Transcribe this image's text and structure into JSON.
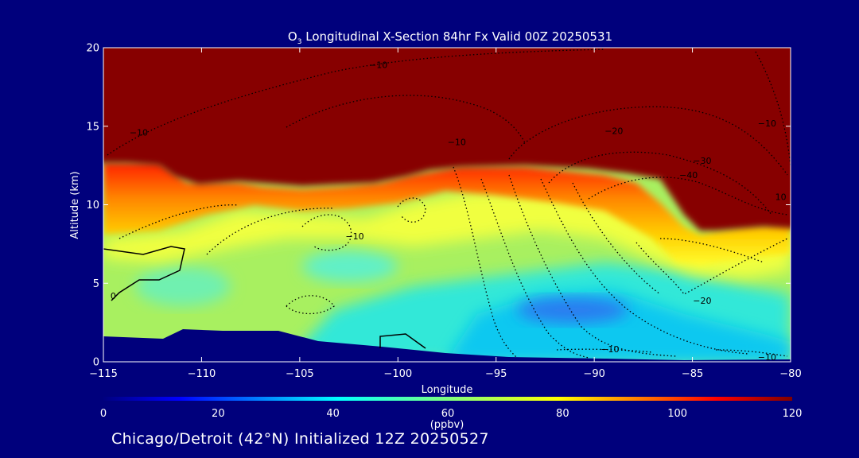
{
  "chart_data": {
    "type": "heatmap",
    "title_main": "O",
    "title_sub": "3",
    "title_rest": " Longitudinal X-Section 84hr  Fx Valid 00Z 20250531",
    "xlabel": "Longitude",
    "ylabel": "Altitude (km)",
    "xlim": [
      -115,
      -80
    ],
    "ylim": [
      0,
      20
    ],
    "xticks": [
      -115,
      -110,
      -105,
      -100,
      -95,
      -90,
      -85,
      -80
    ],
    "xtick_labels": [
      "−115",
      "−110",
      "−105",
      "−100",
      "−95",
      "−90",
      "−85",
      "−80"
    ],
    "yticks": [
      0,
      5,
      10,
      15,
      20
    ],
    "yticks_labels": [
      "0",
      "5",
      "10",
      "15",
      "20"
    ],
    "colorbar": {
      "min": 0,
      "max": 120,
      "ticks": [
        "0",
        "20",
        "40",
        "60",
        "80",
        "100",
        "120"
      ],
      "label": "(ppbv)"
    },
    "field_description": "ozone mixing ratio; ~120+ ppbv above tropopause (~12 km west, ~8 km east), 60-80 ppbv mid troposphere, 40-50 ppbv near 3 km at -90",
    "tropopause_km": [
      [
        -115,
        12.5
      ],
      [
        -112,
        12.2
      ],
      [
        -110,
        11
      ],
      [
        -107,
        11.2
      ],
      [
        -104,
        11
      ],
      [
        -101,
        11.5
      ],
      [
        -99,
        11.9
      ],
      [
        -96,
        12.3
      ],
      [
        -92,
        12.2
      ],
      [
        -89,
        11.6
      ],
      [
        -87,
        10
      ],
      [
        -85,
        8.3
      ],
      [
        -82,
        8.4
      ],
      [
        -80,
        8.7
      ]
    ],
    "terrain_km": [
      [
        -115,
        1.7
      ],
      [
        -112,
        1.6
      ],
      [
        -111,
        2.1
      ],
      [
        -106,
        2.0
      ],
      [
        -104,
        1.3
      ],
      [
        -101,
        1.0
      ],
      [
        -96,
        0.7
      ],
      [
        -90,
        0.4
      ],
      [
        -84,
        0.2
      ],
      [
        -80,
        0.2
      ]
    ],
    "contour_labels": [
      {
        "text": "0",
        "x": -114.5,
        "y": 4.0
      },
      {
        "text": "−10",
        "x": -101.0,
        "y": 18.7
      },
      {
        "text": "−10",
        "x": -113.2,
        "y": 14.4
      },
      {
        "text": "−10",
        "x": -97.0,
        "y": 13.8
      },
      {
        "text": "−20",
        "x": -89.0,
        "y": 14.5
      },
      {
        "text": "−30",
        "x": -84.5,
        "y": 12.6
      },
      {
        "text": "−40",
        "x": -85.2,
        "y": 11.7
      },
      {
        "text": "−10",
        "x": -81.2,
        "y": 15.0
      },
      {
        "text": "10",
        "x": -80.5,
        "y": 10.3
      },
      {
        "text": "−10",
        "x": -102.2,
        "y": 7.8
      },
      {
        "text": "−20",
        "x": -84.5,
        "y": 3.7
      },
      {
        "text": "−10",
        "x": -89.2,
        "y": 0.6
      },
      {
        "text": "−10",
        "x": -81.2,
        "y": 0.1
      }
    ]
  },
  "subtitle": "Chicago/Detroit (42°N) Initialized 12Z 20250527"
}
